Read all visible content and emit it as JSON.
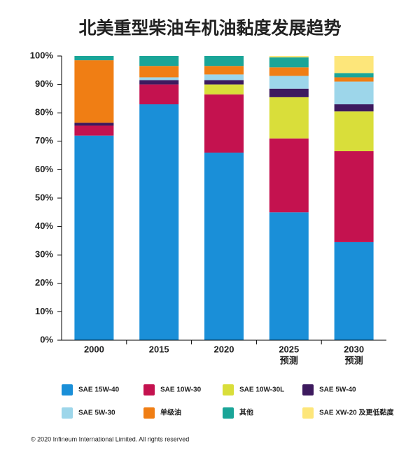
{
  "chart_data": {
    "type": "stacked_bar",
    "title": "北美重型柴油车机油黏度发展趋势",
    "categories": [
      "2000",
      "2015",
      "2020",
      "2025",
      "2030"
    ],
    "category_sublabels": [
      null,
      null,
      null,
      "预测",
      "预测"
    ],
    "series": [
      {
        "name": "SAE 15W-40",
        "color": "#1a8fd8",
        "values": [
          72,
          83,
          66,
          45,
          34.5
        ]
      },
      {
        "name": "SAE 10W-30",
        "color": "#c4124f",
        "values": [
          3.5,
          7,
          20.5,
          26,
          32
        ]
      },
      {
        "name": "SAE 10W-30L",
        "color": "#d9de3a",
        "values": [
          0,
          0,
          3.5,
          14.5,
          14
        ]
      },
      {
        "name": "SAE 5W-40",
        "color": "#3d1a5e",
        "values": [
          1,
          1.5,
          1.5,
          3,
          2.5
        ]
      },
      {
        "name": "SAE 5W-30",
        "color": "#9dd6ea",
        "values": [
          0,
          1,
          2,
          4.5,
          8
        ]
      },
      {
        "name": "单级油",
        "color": "#f07e14",
        "values": [
          22,
          4,
          3,
          3,
          1.5
        ]
      },
      {
        "name": "其他",
        "color": "#1aa598",
        "values": [
          1.5,
          3.5,
          3.5,
          3.5,
          1.5
        ]
      },
      {
        "name": "SAE XW-20 及更低黏度",
        "color": "#fde67a",
        "values": [
          0,
          0,
          0,
          0.5,
          6
        ]
      }
    ],
    "ylim": [
      0,
      100
    ],
    "yticks": [
      {
        "value": 0,
        "label": "0%"
      },
      {
        "value": 10,
        "label": "10%"
      },
      {
        "value": 20,
        "label": "20%"
      },
      {
        "value": 30,
        "label": "30%"
      },
      {
        "value": 40,
        "label": "40%"
      },
      {
        "value": 50,
        "label": "50%"
      },
      {
        "value": 60,
        "label": "60%"
      },
      {
        "value": 70,
        "label": "70%"
      },
      {
        "value": 80,
        "label": "80%"
      },
      {
        "value": 90,
        "label": "90%"
      },
      {
        "value": 100,
        "label": "100%"
      }
    ],
    "footnote": "© 2020 Infineum International Limited. All rights reserved"
  }
}
